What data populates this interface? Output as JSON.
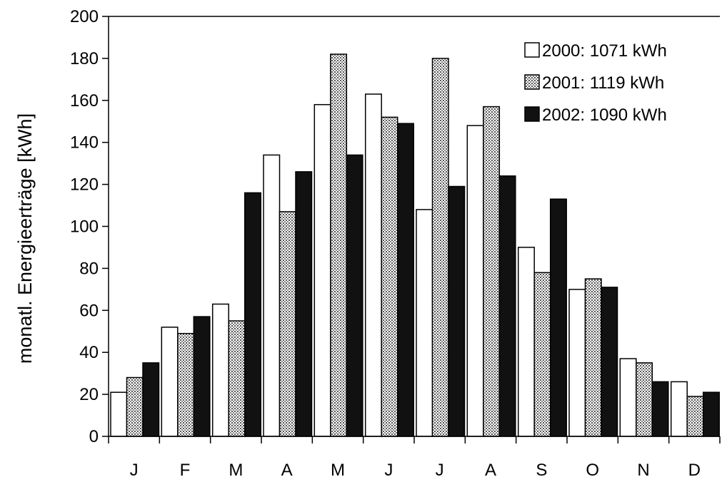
{
  "chart_data": {
    "type": "bar",
    "categories": [
      "J",
      "F",
      "M",
      "A",
      "M",
      "J",
      "J",
      "A",
      "S",
      "O",
      "N",
      "D"
    ],
    "series": [
      {
        "name": "2000: 1071 kWh",
        "values": [
          21,
          52,
          63,
          134,
          158,
          163,
          108,
          148,
          90,
          70,
          37,
          26
        ]
      },
      {
        "name": "2001: 1119 kWh",
        "values": [
          28,
          49,
          55,
          107,
          182,
          152,
          180,
          157,
          78,
          75,
          35,
          19
        ]
      },
      {
        "name": "2002: 1090 kWh",
        "values": [
          35,
          57,
          116,
          126,
          134,
          149,
          119,
          124,
          113,
          71,
          26,
          21
        ]
      }
    ],
    "title": "",
    "xlabel": "",
    "ylabel": "monatl. Energieerträge [kWh]",
    "ylim": [
      0,
      200
    ],
    "yticks": [
      0,
      20,
      40,
      60,
      80,
      100,
      120,
      140,
      160,
      180,
      200
    ],
    "grid": false,
    "legend": "top-right",
    "series_styles": [
      {
        "fill": "white"
      },
      {
        "fill": "dotted-gray"
      },
      {
        "fill": "black"
      }
    ]
  }
}
